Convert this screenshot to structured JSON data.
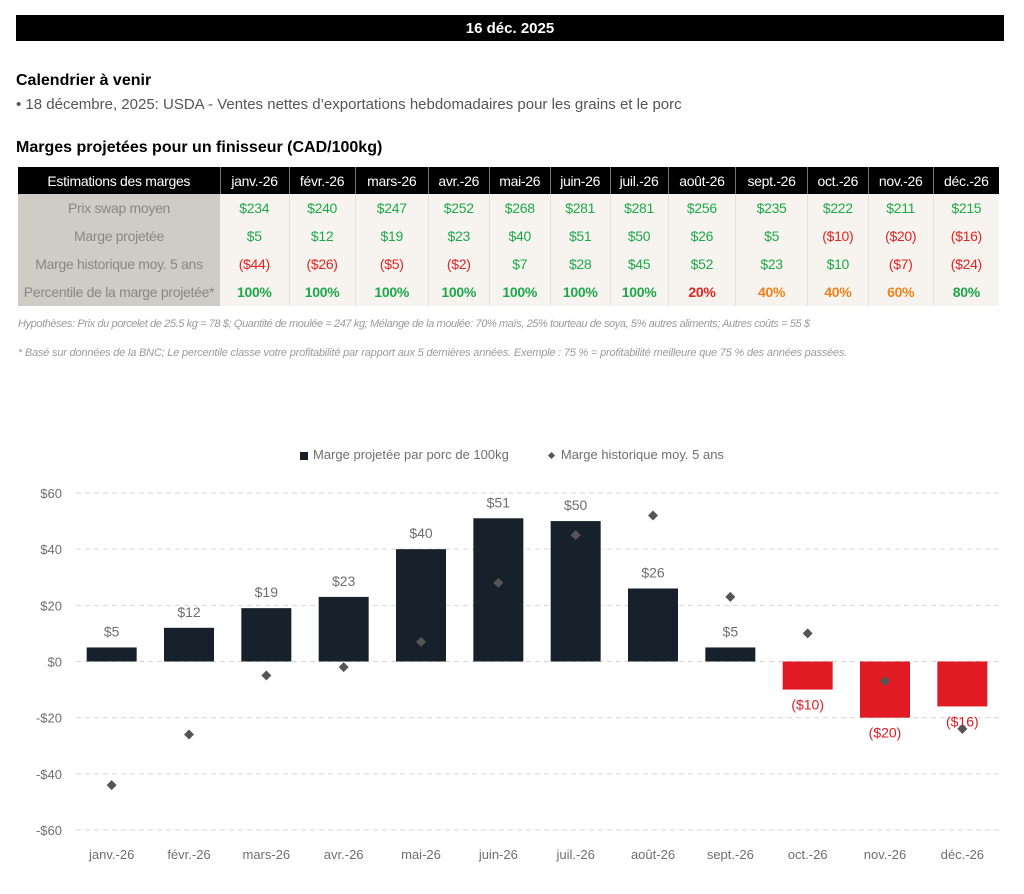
{
  "header": {
    "date": "16 déc. 2025"
  },
  "calendar": {
    "title": "Calendrier à venir",
    "items": [
      "• 18 décembre, 2025: USDA - Ventes nettes d’exportations hebdomadaires pour les grains et le porc"
    ]
  },
  "table": {
    "title": "Marges projetées pour un finisseur (CAD/100kg)",
    "header_label": "Estimations des marges",
    "months": [
      "janv.-26",
      "févr.-26",
      "mars-26",
      "avr.-26",
      "mai-26",
      "juin-26",
      "juil.-26",
      "août-26",
      "sept.-26",
      "oct.-26",
      "nov.-26",
      "déc.-26"
    ],
    "rows": [
      {
        "label": "Prix swap moyen",
        "values": [
          "$234",
          "$240",
          "$247",
          "$252",
          "$268",
          "$281",
          "$281",
          "$256",
          "$235",
          "$222",
          "$211",
          "$215"
        ],
        "tones": [
          "pos",
          "pos",
          "pos",
          "pos",
          "pos",
          "pos",
          "pos",
          "pos",
          "pos",
          "pos",
          "pos",
          "pos"
        ]
      },
      {
        "label": "Marge projetée",
        "values": [
          "$5",
          "$12",
          "$19",
          "$23",
          "$40",
          "$51",
          "$50",
          "$26",
          "$5",
          "($10)",
          "($20)",
          "($16)"
        ],
        "tones": [
          "pos",
          "pos",
          "pos",
          "pos",
          "pos",
          "pos",
          "pos",
          "pos",
          "pos",
          "neg",
          "neg",
          "neg"
        ]
      },
      {
        "label": "Marge historique moy. 5 ans",
        "values": [
          "($44)",
          "($26)",
          "($5)",
          "($2)",
          "$7",
          "$28",
          "$45",
          "$52",
          "$23",
          "$10",
          "($7)",
          "($24)"
        ],
        "tones": [
          "neg",
          "neg",
          "neg",
          "neg",
          "pos",
          "pos",
          "pos",
          "pos",
          "pos",
          "pos",
          "neg",
          "neg"
        ]
      },
      {
        "label": "Percentile de la marge projetée*",
        "values": [
          "100%",
          "100%",
          "100%",
          "100%",
          "100%",
          "100%",
          "100%",
          "20%",
          "40%",
          "40%",
          "60%",
          "80%"
        ],
        "colors": [
          "#1ea84a",
          "#1ea84a",
          "#1ea84a",
          "#1ea84a",
          "#1ea84a",
          "#1ea84a",
          "#1ea84a",
          "#e32222",
          "#f0821e",
          "#f0821e",
          "#f0821e",
          "#1ea84a"
        ]
      }
    ]
  },
  "notes": {
    "assumptions": "Hypothèses: Prix du porcelet de 25.5 kg = 78 $; Quantité de moulée = 247 kg; Mélange de la moulée: 70% maïs, 25% tourteau de soya, 5% autres aliments; Autres coûts = 55 $",
    "footnote": "* Basé sur données de la BNC; Le percentile classe votre profitabilité par rapport aux 5 dernières années. Exemple : 75 % = profitabilité meilleure que 75 % des années passées."
  },
  "colors": {
    "bar_positive": "#17212c",
    "bar_negative": "#e01b24",
    "marker": "#555555",
    "green": "#1ea84a",
    "red": "#e32222",
    "orange": "#f0821e"
  },
  "chart_data": {
    "type": "bar",
    "title": "",
    "xlabel": "",
    "ylabel": "",
    "categories": [
      "janv.-26",
      "févr.-26",
      "mars-26",
      "avr.-26",
      "mai-26",
      "juin-26",
      "juil.-26",
      "août-26",
      "sept.-26",
      "oct.-26",
      "nov.-26",
      "déc.-26"
    ],
    "series": [
      {
        "name": "Marge projetée par porc de 100kg",
        "kind": "bar",
        "values": [
          5,
          12,
          19,
          23,
          40,
          51,
          50,
          26,
          5,
          -10,
          -20,
          -16
        ],
        "labels": [
          "$5",
          "$12",
          "$19",
          "$23",
          "$40",
          "$51",
          "$50",
          "$26",
          "$5",
          "($10)",
          "($20)",
          "($16)"
        ]
      },
      {
        "name": "Marge historique moy. 5 ans",
        "kind": "marker",
        "values": [
          -44,
          -26,
          -5,
          -2,
          7,
          28,
          45,
          52,
          23,
          10,
          -7,
          -24
        ]
      }
    ],
    "ylim": [
      -60,
      60
    ],
    "yticks": [
      60,
      40,
      20,
      0,
      -20,
      -40,
      -60
    ],
    "ytick_labels": [
      "$60",
      "$40",
      "$20",
      "$0",
      "-$20",
      "-$40",
      "-$60"
    ],
    "grid": true,
    "legend_position": "top-center"
  }
}
